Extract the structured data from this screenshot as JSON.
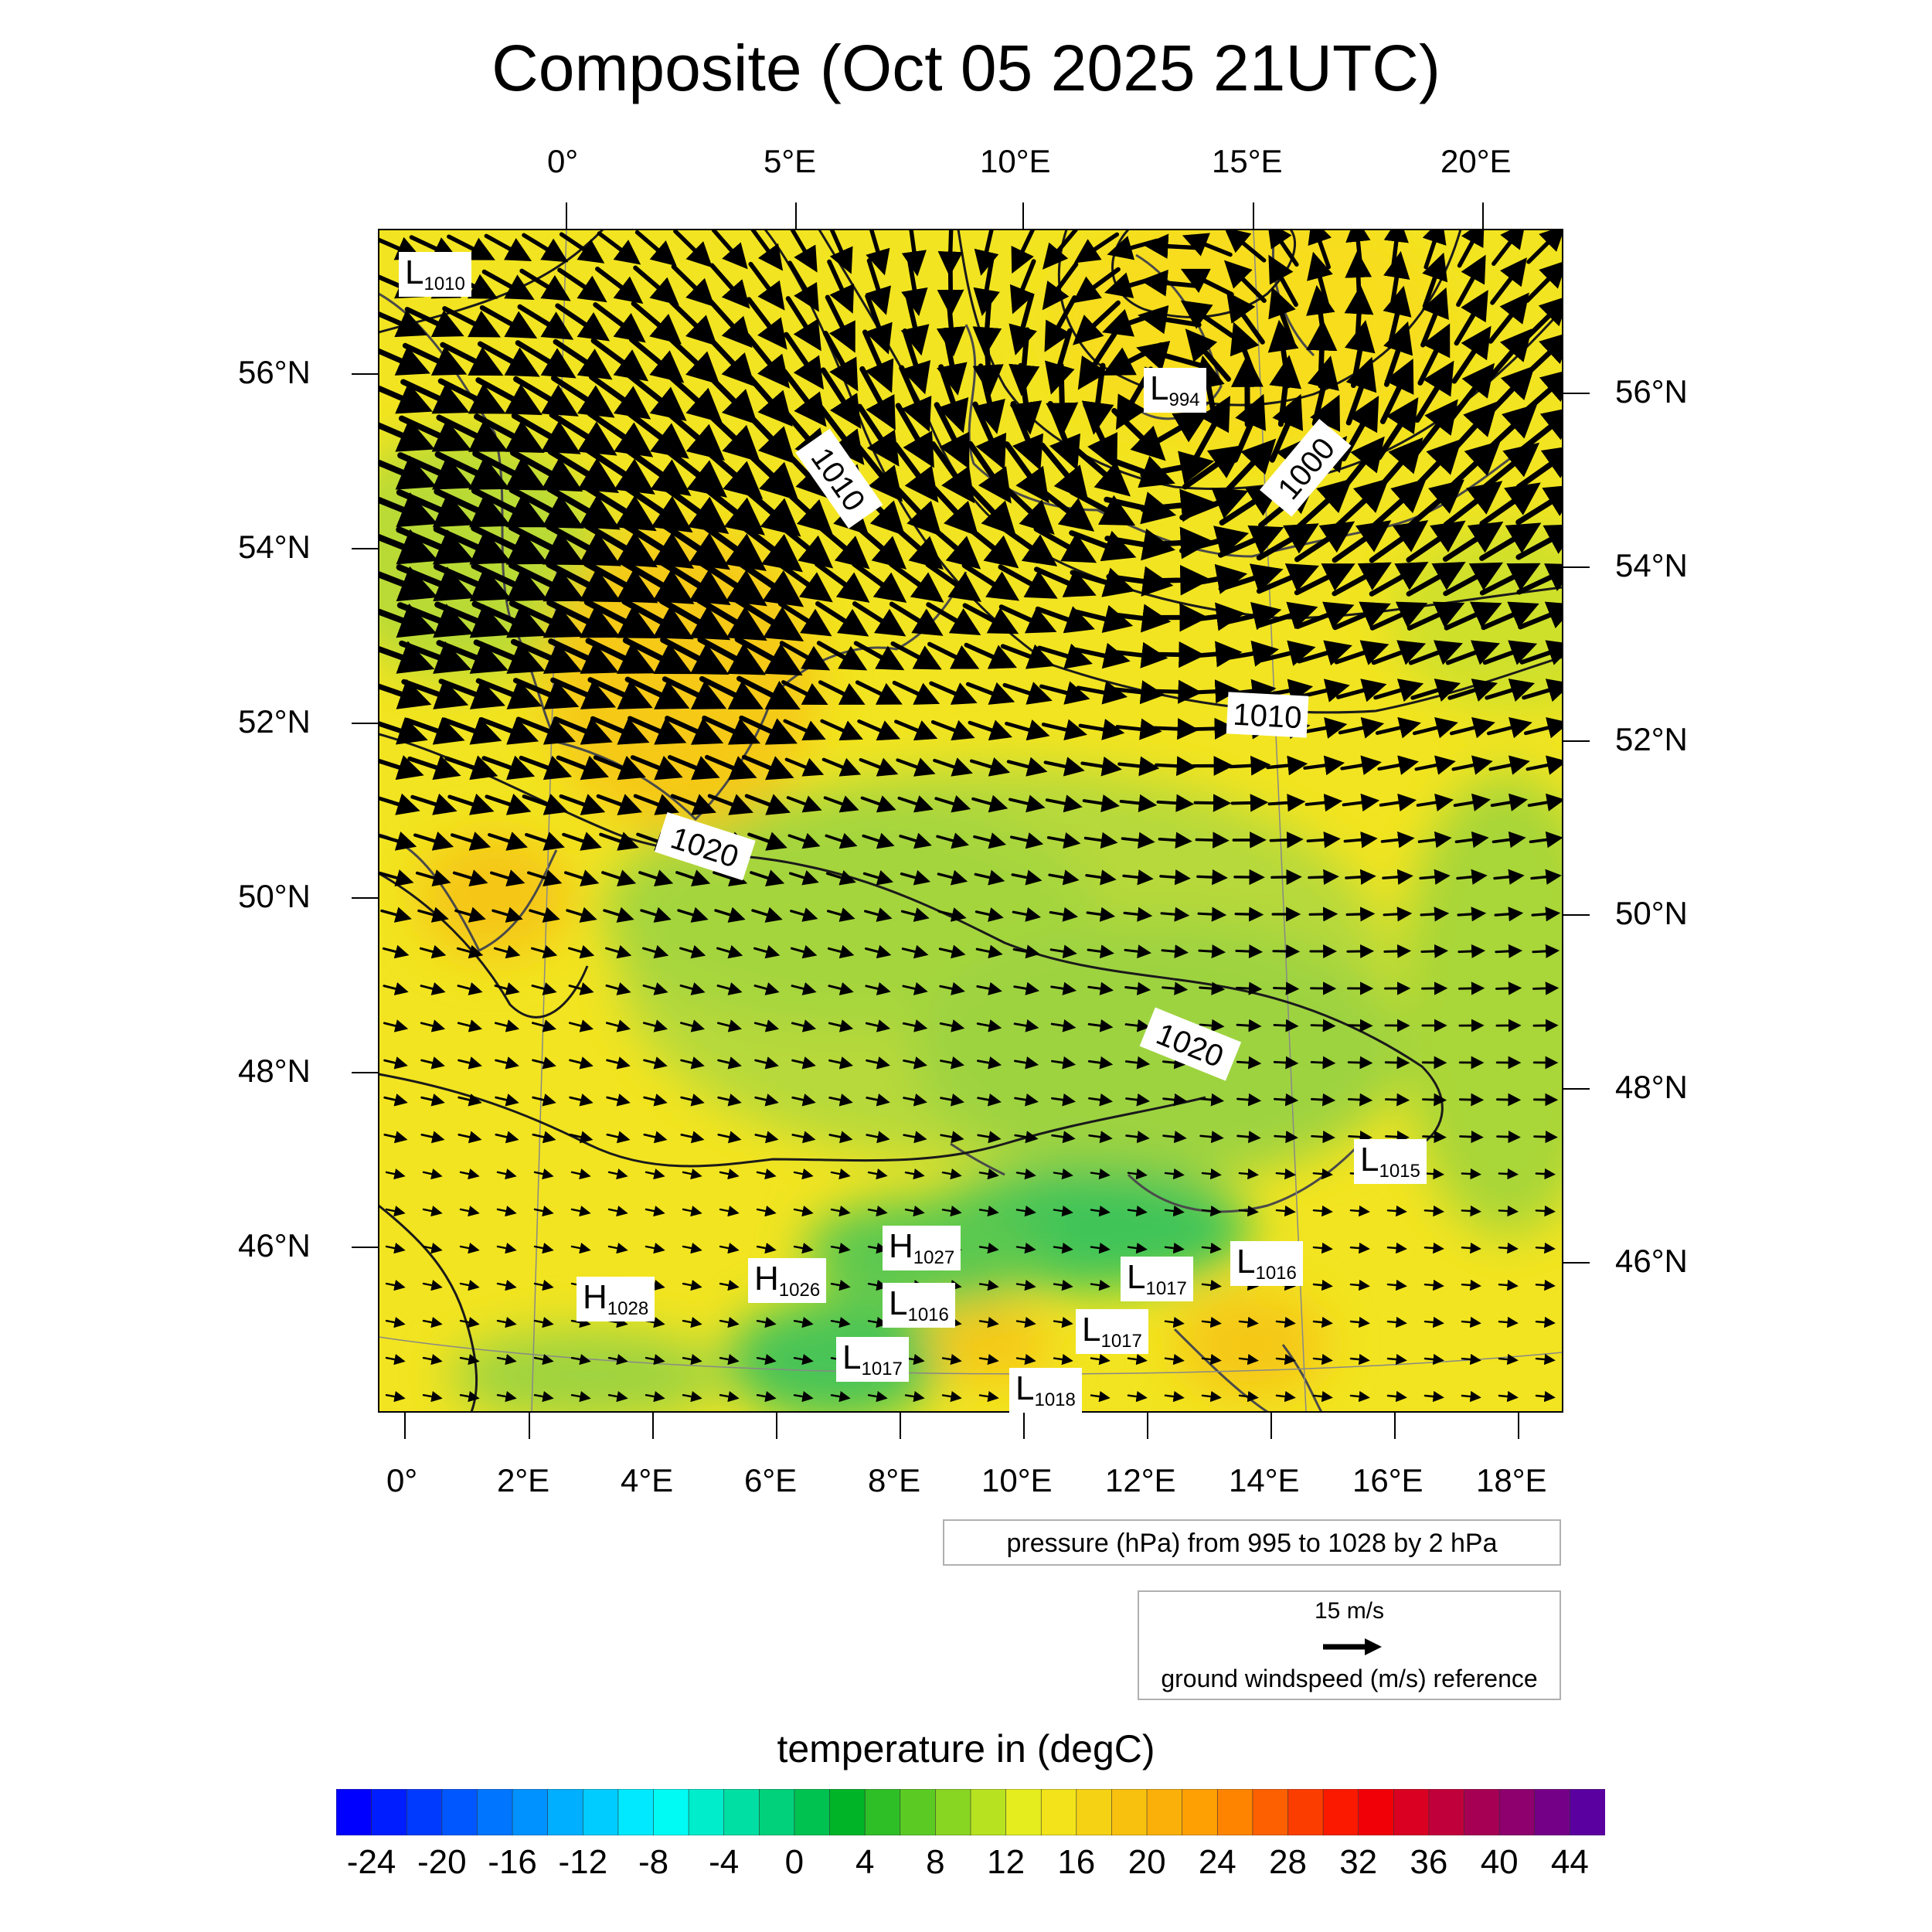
{
  "title": "Composite (Oct 05 2025 21UTC)",
  "top_lon_labels": [
    "0°",
    "5°E",
    "10°E",
    "15°E",
    "20°E"
  ],
  "bottom_lon_labels": [
    "0°",
    "2°E",
    "4°E",
    "6°E",
    "8°E",
    "10°E",
    "12°E",
    "14°E",
    "16°E",
    "18°E"
  ],
  "left_lat_labels": [
    "56°N",
    "54°N",
    "52°N",
    "50°N",
    "48°N",
    "46°N"
  ],
  "right_lat_labels": [
    "56°N",
    "54°N",
    "52°N",
    "50°N",
    "48°N",
    "46°N"
  ],
  "isobar_labels": [
    "1010",
    "1000",
    "1010",
    "1020",
    "1020"
  ],
  "pressure_centers": [
    {
      "type": "L",
      "value": "1010"
    },
    {
      "type": "L",
      "value": "994"
    },
    {
      "type": "L",
      "value": "1015"
    },
    {
      "type": "H",
      "value": "1027"
    },
    {
      "type": "H",
      "value": "1026"
    },
    {
      "type": "H",
      "value": "1028"
    },
    {
      "type": "L",
      "value": "1016"
    },
    {
      "type": "L",
      "value": "1017"
    },
    {
      "type": "L",
      "value": "1016"
    },
    {
      "type": "L",
      "value": "1017"
    },
    {
      "type": "L",
      "value": "1017"
    },
    {
      "type": "L",
      "value": "1018"
    }
  ],
  "contour_note": "pressure (hPa) from 995 to 1028 by 2 hPa",
  "wind_reference": {
    "speed": "15 m/s",
    "label": "ground windspeed (m/s) reference"
  },
  "colorbar": {
    "title": "temperature in (degC)",
    "labels": [
      "-24",
      "-20",
      "-16",
      "-12",
      "-8",
      "-4",
      "0",
      "4",
      "8",
      "12",
      "16",
      "20",
      "24",
      "28",
      "32",
      "36",
      "40",
      "44"
    ],
    "min": -26,
    "max": 46,
    "step": 2
  },
  "colors": {
    "map_base": "#f2e51f",
    "warm": "#f5c518",
    "cool": "#a9d638",
    "cold": "#38c45a",
    "isobar": "#1a1a1a",
    "coast": "#4a4a4a",
    "arrow": "#000000"
  }
}
